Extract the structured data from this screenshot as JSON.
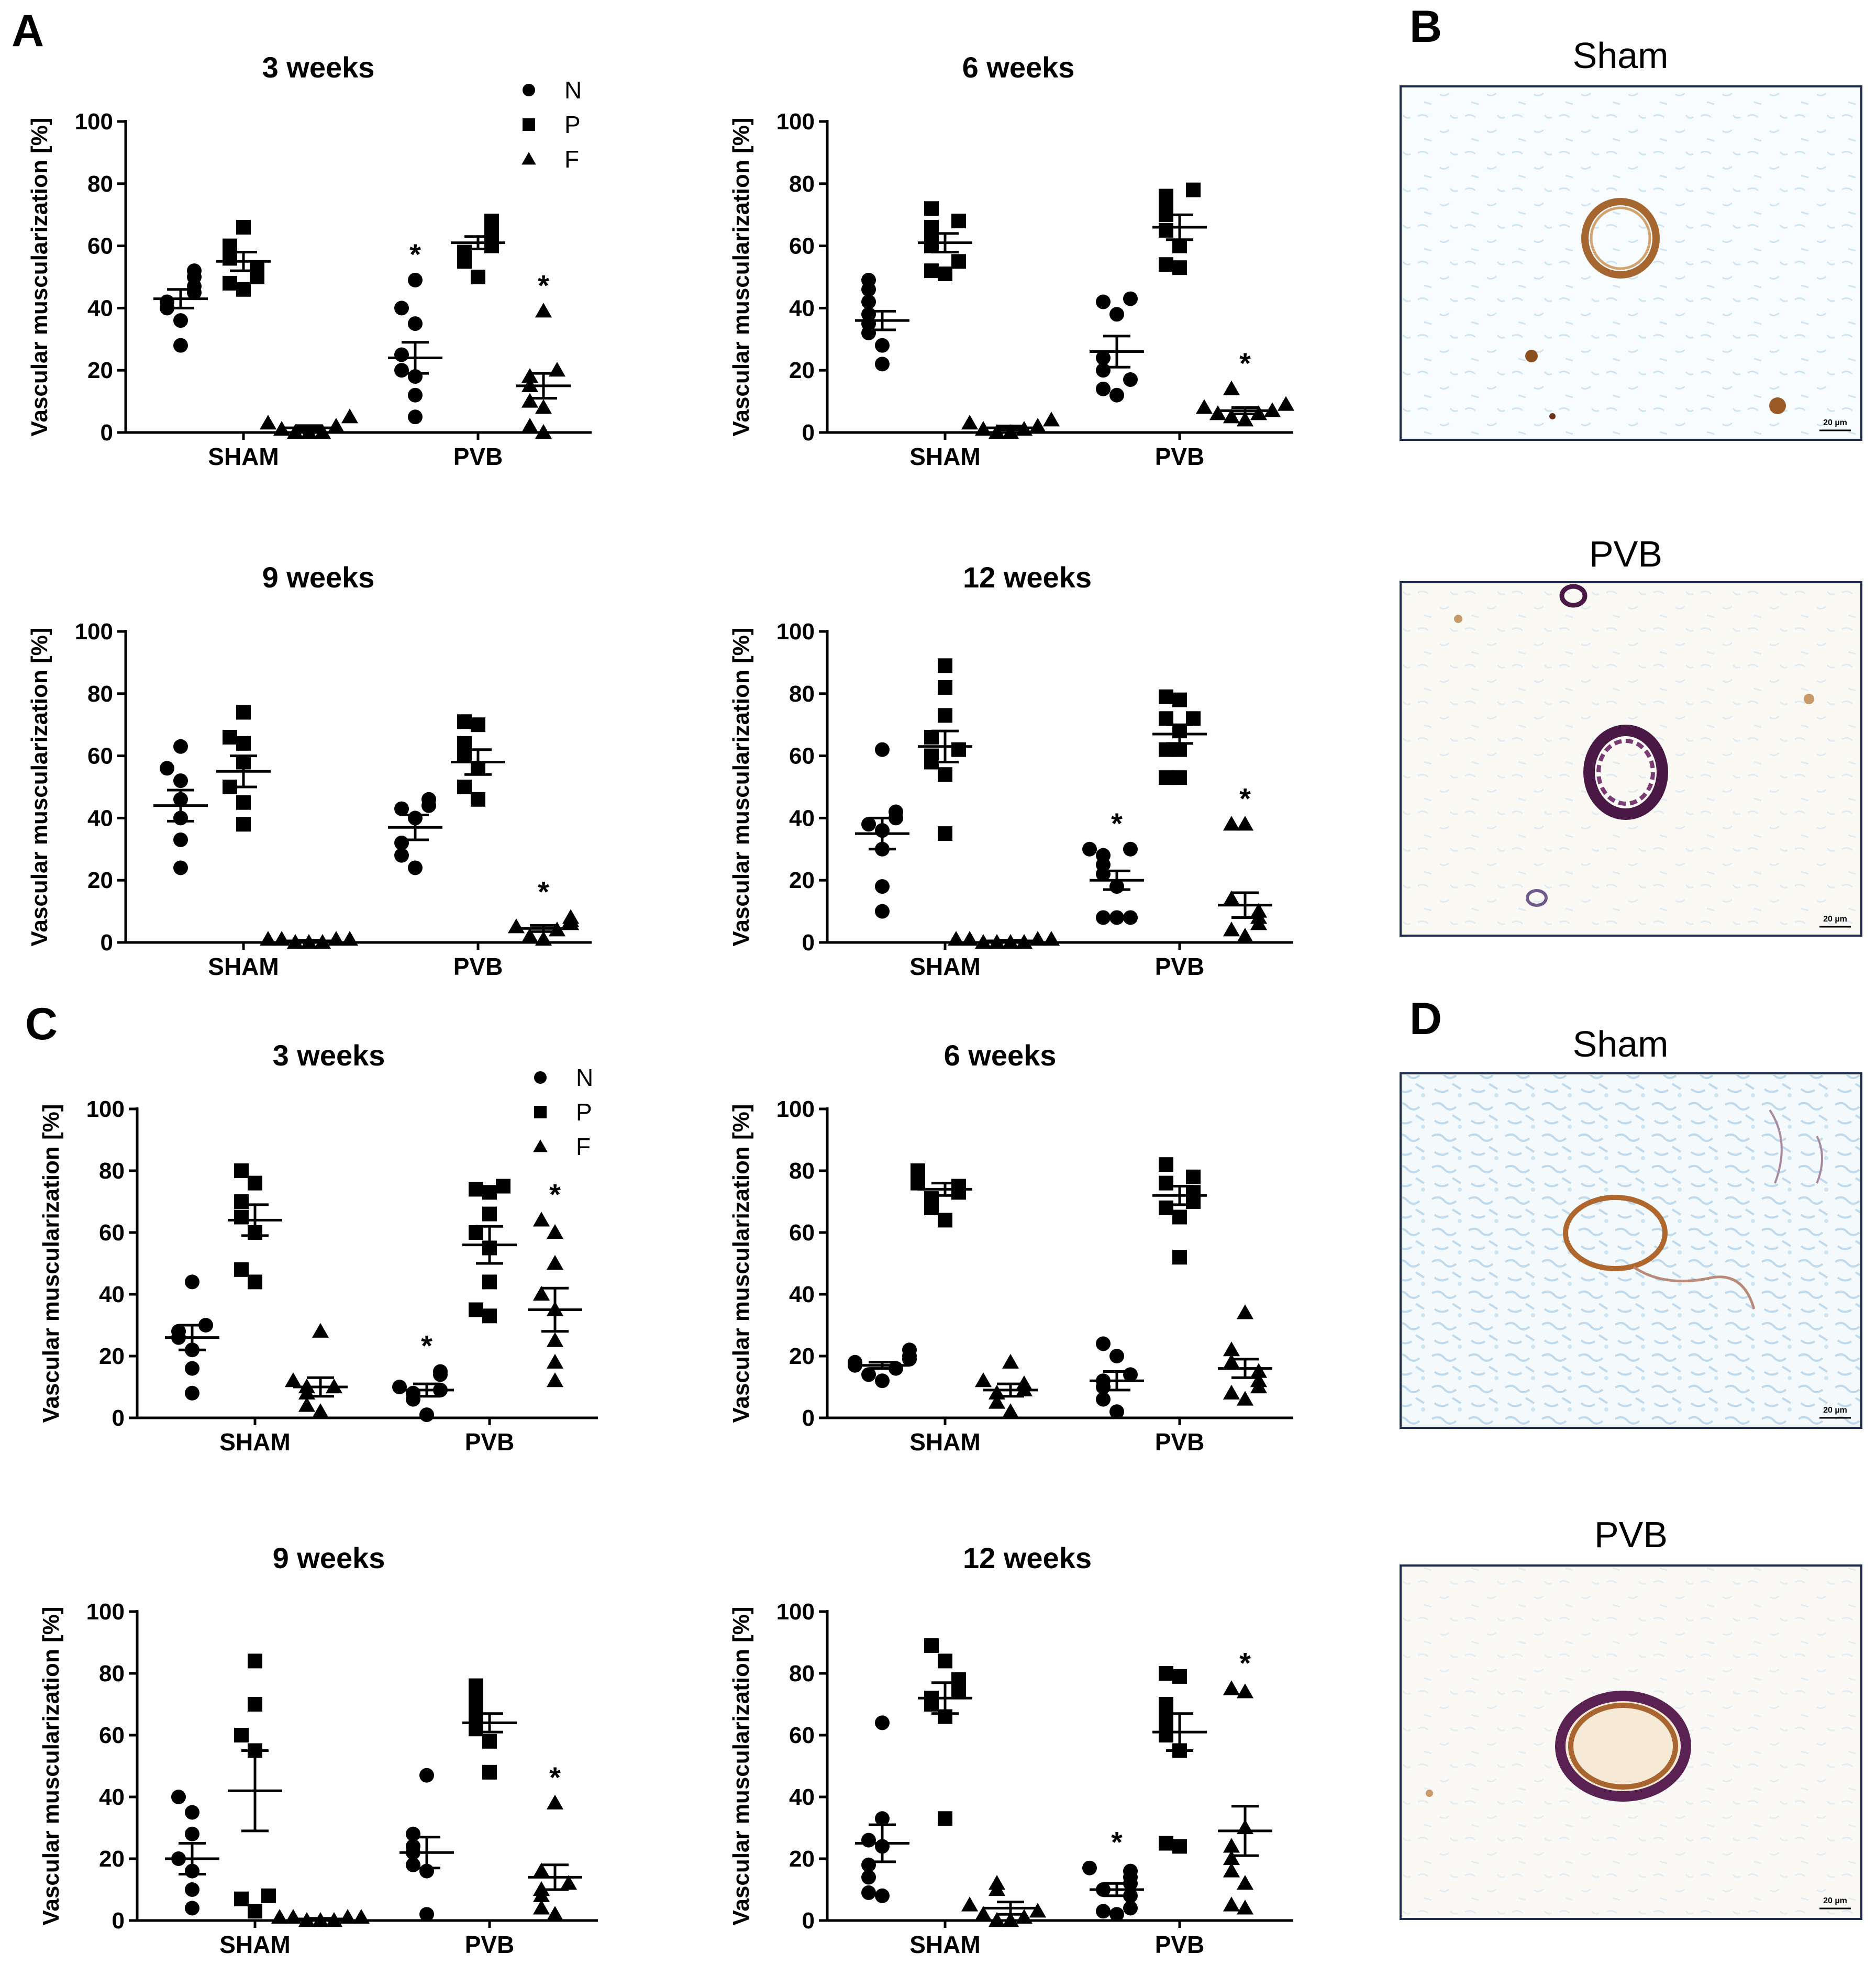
{
  "panel_labels": {
    "a": "A",
    "b": "B",
    "c": "C",
    "d": "D"
  },
  "colors": {
    "ink": "#000000",
    "micro_border": "#1b2a4a",
    "micro_bg": "#f8fbfd",
    "stain_brown": "#9a5a26",
    "stain_purple": "#4a1845",
    "tissue_blue": "#bcd9ea"
  },
  "legend": {
    "n": "N",
    "p": "P",
    "f": "F"
  },
  "micrographs": [
    {
      "id": "b-sham",
      "title": "Sham",
      "scale": "20 µm",
      "style": "brown-ring"
    },
    {
      "id": "b-pvb",
      "title": "PVB",
      "scale": "20 µm",
      "style": "purple-ring"
    },
    {
      "id": "d-sham",
      "title": "Sham",
      "scale": "20 µm",
      "style": "brown-ring-blue"
    },
    {
      "id": "d-pvb",
      "title": "PVB",
      "scale": "20 µm",
      "style": "mixed-ring"
    }
  ],
  "chart_data": [
    {
      "id": "A1",
      "type": "scatter",
      "title": "3 weeks",
      "ylabel": "Vascular muscularization [%]",
      "ylim": [
        0,
        100
      ],
      "yticks": [
        0,
        20,
        40,
        60,
        80,
        100
      ],
      "categories": [
        "SHAM",
        "PVB"
      ],
      "legend": true,
      "groups": [
        {
          "cat": "SHAM",
          "series": "N",
          "values": [
            28,
            36,
            40,
            42,
            45,
            47,
            50,
            52
          ],
          "mean": 43,
          "sem": 3
        },
        {
          "cat": "SHAM",
          "series": "P",
          "values": [
            46,
            48,
            50,
            53,
            56,
            60,
            66
          ],
          "mean": 55,
          "sem": 3
        },
        {
          "cat": "SHAM",
          "series": "F",
          "values": [
            0,
            0,
            0,
            1,
            2,
            3,
            5
          ],
          "mean": 1.5,
          "sem": 0.7
        },
        {
          "cat": "PVB",
          "series": "N",
          "values": [
            5,
            12,
            18,
            20,
            25,
            35,
            40,
            49
          ],
          "mean": 24,
          "sem": 5,
          "sig": true
        },
        {
          "cat": "PVB",
          "series": "P",
          "values": [
            50,
            55,
            58,
            60,
            62,
            64,
            66,
            68
          ],
          "mean": 61,
          "sem": 2
        },
        {
          "cat": "PVB",
          "series": "F",
          "values": [
            0,
            2,
            8,
            10,
            15,
            18,
            20,
            39
          ],
          "mean": 15,
          "sem": 4,
          "sig": true
        }
      ]
    },
    {
      "id": "A2",
      "type": "scatter",
      "title": "6 weeks",
      "ylabel": "Vascular muscularization [%]",
      "ylim": [
        0,
        100
      ],
      "yticks": [
        0,
        20,
        40,
        60,
        80,
        100
      ],
      "categories": [
        "SHAM",
        "PVB"
      ],
      "legend": false,
      "groups": [
        {
          "cat": "SHAM",
          "series": "N",
          "values": [
            22,
            28,
            32,
            35,
            38,
            42,
            46,
            49
          ],
          "mean": 36,
          "sem": 3
        },
        {
          "cat": "SHAM",
          "series": "P",
          "values": [
            51,
            52,
            55,
            60,
            63,
            66,
            68,
            72
          ],
          "mean": 61,
          "sem": 3
        },
        {
          "cat": "SHAM",
          "series": "F",
          "values": [
            0,
            0,
            1,
            1,
            2,
            3,
            4
          ],
          "mean": 1.5,
          "sem": 0.6
        },
        {
          "cat": "PVB",
          "series": "N",
          "values": [
            12,
            14,
            17,
            20,
            24,
            38,
            42,
            43
          ],
          "mean": 26,
          "sem": 5
        },
        {
          "cat": "PVB",
          "series": "P",
          "values": [
            53,
            54,
            60,
            65,
            70,
            74,
            76,
            78
          ],
          "mean": 66,
          "sem": 4
        },
        {
          "cat": "PVB",
          "series": "F",
          "values": [
            4,
            5,
            6,
            6,
            7,
            8,
            9,
            14
          ],
          "mean": 7,
          "sem": 1,
          "sig": true
        }
      ]
    },
    {
      "id": "A3",
      "type": "scatter",
      "title": "9 weeks",
      "ylabel": "Vascular muscularization [%]",
      "ylim": [
        0,
        100
      ],
      "yticks": [
        0,
        20,
        40,
        60,
        80,
        100
      ],
      "categories": [
        "SHAM",
        "PVB"
      ],
      "legend": false,
      "groups": [
        {
          "cat": "SHAM",
          "series": "N",
          "values": [
            24,
            33,
            40,
            46,
            52,
            56,
            63
          ],
          "mean": 44,
          "sem": 5
        },
        {
          "cat": "SHAM",
          "series": "P",
          "values": [
            38,
            45,
            50,
            58,
            64,
            66,
            74
          ],
          "mean": 55,
          "sem": 5
        },
        {
          "cat": "SHAM",
          "series": "F",
          "values": [
            0,
            0,
            0,
            1,
            1,
            1,
            1
          ],
          "mean": 0.5,
          "sem": 0.2
        },
        {
          "cat": "PVB",
          "series": "N",
          "values": [
            24,
            28,
            32,
            40,
            43,
            44,
            46
          ],
          "mean": 37,
          "sem": 4
        },
        {
          "cat": "PVB",
          "series": "P",
          "values": [
            46,
            50,
            56,
            60,
            64,
            70,
            71
          ],
          "mean": 58,
          "sem": 4
        },
        {
          "cat": "PVB",
          "series": "F",
          "values": [
            1,
            2,
            4,
            5,
            6,
            7,
            8
          ],
          "mean": 4.5,
          "sem": 1,
          "sig": true
        }
      ]
    },
    {
      "id": "A4",
      "type": "scatter",
      "title": "12 weeks",
      "ylabel": "Vascular muscularization [%]",
      "ylim": [
        0,
        100
      ],
      "yticks": [
        0,
        20,
        40,
        60,
        80,
        100
      ],
      "categories": [
        "SHAM",
        "PVB"
      ],
      "legend": false,
      "groups": [
        {
          "cat": "SHAM",
          "series": "N",
          "values": [
            10,
            18,
            30,
            36,
            38,
            40,
            42,
            62
          ],
          "mean": 35,
          "sem": 5
        },
        {
          "cat": "SHAM",
          "series": "P",
          "values": [
            35,
            54,
            58,
            60,
            62,
            66,
            73,
            82,
            89
          ],
          "mean": 63,
          "sem": 5
        },
        {
          "cat": "SHAM",
          "series": "F",
          "values": [
            0,
            0,
            0,
            0,
            1,
            1,
            1,
            1
          ],
          "mean": 0.5,
          "sem": 0.2
        },
        {
          "cat": "PVB",
          "series": "N",
          "values": [
            8,
            8,
            8,
            18,
            22,
            25,
            28,
            30,
            30
          ],
          "mean": 20,
          "sem": 3,
          "sig": true
        },
        {
          "cat": "PVB",
          "series": "P",
          "values": [
            53,
            53,
            62,
            62,
            68,
            72,
            72,
            78,
            79
          ],
          "mean": 67,
          "sem": 3
        },
        {
          "cat": "PVB",
          "series": "F",
          "values": [
            2,
            4,
            6,
            8,
            10,
            14,
            38,
            38
          ],
          "mean": 12,
          "sem": 4,
          "sig": true
        }
      ]
    },
    {
      "id": "C1",
      "type": "scatter",
      "title": "3 weeks",
      "ylabel": "Vascular muscularization [%]",
      "ylim": [
        0,
        100
      ],
      "yticks": [
        0,
        20,
        40,
        60,
        80,
        100
      ],
      "categories": [
        "SHAM",
        "PVB"
      ],
      "legend": true,
      "groups": [
        {
          "cat": "SHAM",
          "series": "N",
          "values": [
            8,
            16,
            22,
            26,
            28,
            30,
            44
          ],
          "mean": 26,
          "sem": 4
        },
        {
          "cat": "SHAM",
          "series": "P",
          "values": [
            44,
            48,
            60,
            65,
            70,
            76,
            80
          ],
          "mean": 64,
          "sem": 5
        },
        {
          "cat": "SHAM",
          "series": "F",
          "values": [
            2,
            4,
            8,
            10,
            10,
            12,
            28
          ],
          "mean": 10,
          "sem": 3
        },
        {
          "cat": "PVB",
          "series": "N",
          "values": [
            1,
            6,
            8,
            9,
            10,
            14,
            15
          ],
          "mean": 9,
          "sem": 2,
          "sig": true
        },
        {
          "cat": "PVB",
          "series": "P",
          "values": [
            33,
            35,
            44,
            55,
            60,
            66,
            73,
            74,
            75
          ],
          "mean": 56,
          "sem": 6
        },
        {
          "cat": "PVB",
          "series": "F",
          "values": [
            12,
            18,
            25,
            35,
            40,
            50,
            60,
            64
          ],
          "mean": 35,
          "sem": 7,
          "sig": true
        }
      ]
    },
    {
      "id": "C2",
      "type": "scatter",
      "title": "6 weeks",
      "ylabel": "Vascular muscularization [%]",
      "ylim": [
        0,
        100
      ],
      "yticks": [
        0,
        20,
        40,
        60,
        80,
        100
      ],
      "categories": [
        "SHAM",
        "PVB"
      ],
      "legend": false,
      "groups": [
        {
          "cat": "SHAM",
          "series": "N",
          "values": [
            12,
            14,
            16,
            17,
            18,
            19,
            20,
            22
          ],
          "mean": 17,
          "sem": 1
        },
        {
          "cat": "SHAM",
          "series": "P",
          "values": [
            64,
            68,
            71,
            73,
            75,
            76,
            78,
            80
          ],
          "mean": 74,
          "sem": 2
        },
        {
          "cat": "SHAM",
          "series": "F",
          "values": [
            2,
            5,
            8,
            9,
            11,
            12,
            18
          ],
          "mean": 9,
          "sem": 2
        },
        {
          "cat": "PVB",
          "series": "N",
          "values": [
            2,
            6,
            10,
            12,
            14,
            20,
            24
          ],
          "mean": 12,
          "sem": 3
        },
        {
          "cat": "PVB",
          "series": "P",
          "values": [
            52,
            65,
            68,
            70,
            73,
            76,
            78,
            82
          ],
          "mean": 72,
          "sem": 3
        },
        {
          "cat": "PVB",
          "series": "F",
          "values": [
            6,
            8,
            10,
            12,
            15,
            18,
            22,
            34
          ],
          "mean": 16,
          "sem": 3
        }
      ]
    },
    {
      "id": "C3",
      "type": "scatter",
      "title": "9 weeks",
      "ylabel": "Vascular muscularization [%]",
      "ylim": [
        0,
        100
      ],
      "yticks": [
        0,
        20,
        40,
        60,
        80,
        100
      ],
      "categories": [
        "SHAM",
        "PVB"
      ],
      "legend": false,
      "groups": [
        {
          "cat": "SHAM",
          "series": "N",
          "values": [
            4,
            10,
            16,
            20,
            28,
            35,
            40
          ],
          "mean": 20,
          "sem": 5
        },
        {
          "cat": "SHAM",
          "series": "P",
          "values": [
            3,
            7,
            8,
            55,
            60,
            70,
            84
          ],
          "mean": 42,
          "sem": 13
        },
        {
          "cat": "SHAM",
          "series": "F",
          "values": [
            0,
            0,
            0,
            1,
            1,
            1,
            1
          ],
          "mean": 0.5,
          "sem": 0.2
        },
        {
          "cat": "PVB",
          "series": "N",
          "values": [
            2,
            16,
            18,
            22,
            24,
            28,
            47
          ],
          "mean": 22,
          "sem": 5
        },
        {
          "cat": "PVB",
          "series": "P",
          "values": [
            48,
            58,
            62,
            65,
            68,
            72,
            76
          ],
          "mean": 64,
          "sem": 3
        },
        {
          "cat": "PVB",
          "series": "F",
          "values": [
            2,
            4,
            8,
            10,
            12,
            16,
            38
          ],
          "mean": 14,
          "sem": 4,
          "sig": true
        }
      ]
    },
    {
      "id": "C4",
      "type": "scatter",
      "title": "12 weeks",
      "ylabel": "Vascular muscularization [%]",
      "ylim": [
        0,
        100
      ],
      "yticks": [
        0,
        20,
        40,
        60,
        80,
        100
      ],
      "categories": [
        "SHAM",
        "PVB"
      ],
      "legend": false,
      "groups": [
        {
          "cat": "SHAM",
          "series": "N",
          "values": [
            8,
            9,
            14,
            18,
            24,
            26,
            33,
            64
          ],
          "mean": 25,
          "sem": 6
        },
        {
          "cat": "SHAM",
          "series": "P",
          "values": [
            33,
            66,
            70,
            72,
            74,
            76,
            78,
            84,
            89
          ],
          "mean": 72,
          "sem": 5
        },
        {
          "cat": "SHAM",
          "series": "F",
          "values": [
            0,
            0,
            1,
            2,
            3,
            5,
            10,
            12
          ],
          "mean": 4,
          "sem": 2
        },
        {
          "cat": "PVB",
          "series": "N",
          "values": [
            2,
            3,
            4,
            8,
            10,
            12,
            14,
            16,
            17
          ],
          "mean": 10,
          "sem": 2,
          "sig": true
        },
        {
          "cat": "PVB",
          "series": "P",
          "values": [
            24,
            25,
            55,
            60,
            62,
            66,
            70,
            79,
            80
          ],
          "mean": 61,
          "sem": 6
        },
        {
          "cat": "PVB",
          "series": "F",
          "values": [
            4,
            5,
            12,
            16,
            20,
            24,
            30,
            74,
            75
          ],
          "mean": 29,
          "sem": 8,
          "sig": true
        }
      ]
    }
  ]
}
